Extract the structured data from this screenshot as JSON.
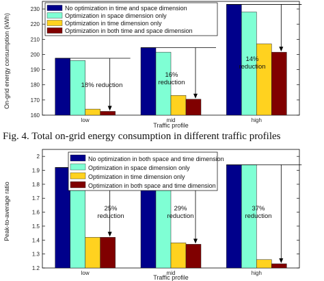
{
  "figure_caption": "Fig. 4.    Total on-grid energy consumption in different traffic profiles",
  "chart_data": [
    {
      "type": "bar",
      "xlabel": "Traffic profile",
      "ylabel": "On-grid energy consumption (kWh)",
      "categories": [
        "low",
        "mid",
        "high"
      ],
      "ylim": [
        160,
        235
      ],
      "yticks": [
        160,
        170,
        180,
        190,
        200,
        210,
        220,
        230
      ],
      "legend_position": "top-left",
      "series": [
        {
          "name": "No optimization in time and space dimension",
          "color": "#00008b",
          "values": [
            197.5,
            204.5,
            233
          ]
        },
        {
          "name": "Optimization in space dimension only",
          "color": "#7fffd4",
          "values": [
            196,
            201.5,
            228
          ]
        },
        {
          "name": "Optimization in time dimension only",
          "color": "#ffd21f",
          "values": [
            164,
            173,
            207
          ]
        },
        {
          "name": "Optimization in both time and space dimension",
          "color": "#800000",
          "values": [
            162.5,
            170.5,
            201.5
          ]
        }
      ],
      "annotations": [
        {
          "category": "low",
          "lines": [
            "18% reduction"
          ]
        },
        {
          "category": "mid",
          "lines": [
            "16%",
            "reduction"
          ]
        },
        {
          "category": "high",
          "lines": [
            "14%",
            "reduction"
          ]
        }
      ]
    },
    {
      "type": "bar",
      "xlabel": "Traffic profile",
      "ylabel": "Peak-to-average ratio",
      "categories": [
        "low",
        "mid",
        "high"
      ],
      "ylim": [
        1.2,
        2.05
      ],
      "yticks": [
        1.2,
        1.3,
        1.4,
        1.5,
        1.6,
        1.7,
        1.8,
        1.9,
        2
      ],
      "legend_position": "top-left",
      "series": [
        {
          "name": "No optimization in both space and time dimension",
          "color": "#00008b",
          "values": [
            1.92,
            1.93,
            1.94
          ]
        },
        {
          "name": "Optimization in space dimension only",
          "color": "#7fffd4",
          "values": [
            1.92,
            1.93,
            1.94
          ]
        },
        {
          "name": "Optimization in time dimension only",
          "color": "#ffd21f",
          "values": [
            1.42,
            1.38,
            1.26
          ]
        },
        {
          "name": "Optimization in both space and time dimension",
          "color": "#800000",
          "values": [
            1.42,
            1.37,
            1.23
          ]
        }
      ],
      "annotations": [
        {
          "category": "low",
          "lines": [
            "25%",
            "reduction"
          ]
        },
        {
          "category": "mid",
          "lines": [
            "29%",
            "reduction"
          ]
        },
        {
          "category": "high",
          "lines": [
            "37%",
            "reduction"
          ]
        }
      ]
    }
  ]
}
